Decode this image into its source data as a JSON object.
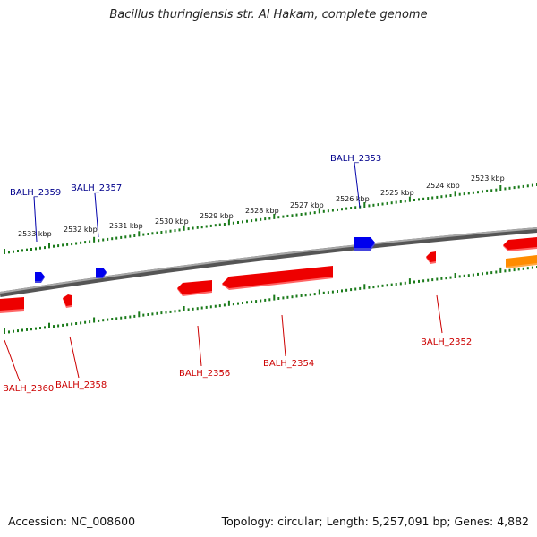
{
  "title": "Bacillus thuringiensis str. Al Hakam, complete genome",
  "footer": {
    "accession": "Accession: NC_008600",
    "summary": "Topology: circular; Length: 5,257,091 bp; Genes: 4,882"
  },
  "colors": {
    "forward_gene": "#0000ee",
    "reverse_gene": "#ee0000",
    "other_feature": "#ff8c00",
    "backbone": "#808080",
    "scale": "#1a7a1a",
    "forward_label": "#00008b",
    "reverse_label": "#cc0000"
  },
  "scale": {
    "ticks": [
      "2533 kbp",
      "2532 kbp",
      "2531 kbp",
      "2530 kbp",
      "2529 kbp",
      "2528 kbp",
      "2527 kbp",
      "2526 kbp",
      "2525 kbp",
      "2524 kbp",
      "2523 kbp"
    ]
  },
  "genes_forward": [
    {
      "label": "BALH_2359"
    },
    {
      "label": "BALH_2357"
    },
    {
      "label": "BALH_2353"
    }
  ],
  "genes_reverse": [
    {
      "label": "BALH_2360"
    },
    {
      "label": "BALH_2358"
    },
    {
      "label": "BALH_2356"
    },
    {
      "label": "BALH_2354"
    },
    {
      "label": "BALH_2352"
    }
  ]
}
